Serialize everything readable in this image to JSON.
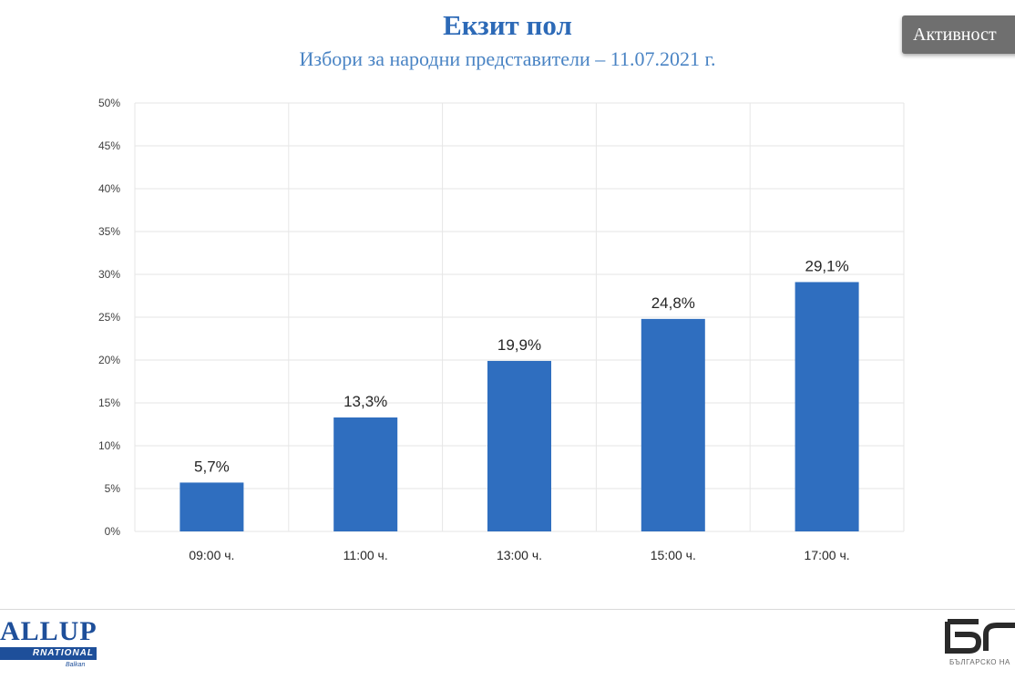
{
  "header": {
    "title": "Екзит пол",
    "subtitle": "Избори за народни представители – 11.07.2021 г.",
    "tab_label": "Активност"
  },
  "logos": {
    "left_main": "ALLUP",
    "left_bar": "RNATIONAL",
    "left_sub": "Balkan",
    "right_caption": "БЪЛГАРСКО НА"
  },
  "colors": {
    "bar": "#2f6ebf",
    "title": "#2d6ab7",
    "subtitle": "#4a84c4",
    "grid": "#e6e6e6"
  },
  "chart_data": {
    "type": "bar",
    "categories": [
      "09:00 ч.",
      "11:00 ч.",
      "13:00 ч.",
      "15:00 ч.",
      "17:00 ч."
    ],
    "values": [
      5.7,
      13.3,
      19.9,
      24.8,
      29.1
    ],
    "data_labels": [
      "5,7%",
      "13,3%",
      "19,9%",
      "24,8%",
      "29,1%"
    ],
    "y_ticks": [
      "0%",
      "5%",
      "10%",
      "15%",
      "20%",
      "25%",
      "30%",
      "35%",
      "40%",
      "45%",
      "50%"
    ],
    "ylim": [
      0,
      50
    ],
    "y_step": 5,
    "grid": true,
    "legend": "none"
  }
}
